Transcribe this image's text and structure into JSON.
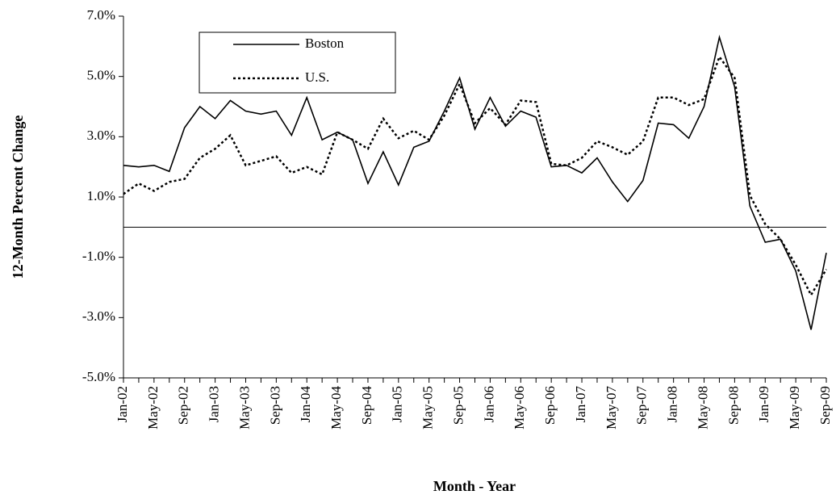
{
  "chart_data": {
    "type": "line",
    "x_label": "Month - Year",
    "y_label": "12-Month Percent Change",
    "categories": [
      "Jan-02",
      null,
      "May-02",
      null,
      "Sep-02",
      null,
      "Jan-03",
      null,
      "May-03",
      null,
      "Sep-03",
      null,
      "Jan-04",
      null,
      "May-04",
      null,
      "Sep-04",
      null,
      "Jan-05",
      null,
      "May-05",
      null,
      "Sep-05",
      null,
      "Jan-06",
      null,
      "May-06",
      null,
      "Sep-06",
      null,
      "Jan-07",
      null,
      "May-07",
      null,
      "Sep-07",
      null,
      "Jan-08",
      null,
      "May-08",
      null,
      "Sep-08",
      null,
      "Jan-09",
      null,
      "May-09",
      null,
      "Sep-09"
    ],
    "series": [
      {
        "name": "Boston",
        "color": "#000000",
        "line_style": "solid",
        "values": [
          2.05,
          2.0,
          2.05,
          1.85,
          3.3,
          4.0,
          3.6,
          4.2,
          3.85,
          3.75,
          3.85,
          3.05,
          4.3,
          2.9,
          3.15,
          2.9,
          1.45,
          2.5,
          1.4,
          2.65,
          2.85,
          3.85,
          4.95,
          3.25,
          4.3,
          3.35,
          3.85,
          3.65,
          2.0,
          2.05,
          1.8,
          2.3,
          1.5,
          0.85,
          1.55,
          3.45,
          3.4,
          2.95,
          4.0,
          6.3,
          4.65,
          0.7,
          -0.5,
          -0.4,
          -1.45,
          -3.4,
          -0.85
        ]
      },
      {
        "name": "U.S.",
        "color": "#000000",
        "line_style": "dotted",
        "values": [
          1.1,
          1.45,
          1.2,
          1.5,
          1.6,
          2.3,
          2.6,
          3.05,
          2.05,
          2.2,
          2.35,
          1.8,
          2.0,
          1.75,
          3.15,
          2.9,
          2.6,
          3.6,
          2.95,
          3.2,
          2.9,
          3.7,
          4.75,
          3.45,
          3.95,
          3.4,
          4.2,
          4.15,
          2.1,
          2.05,
          2.3,
          2.85,
          2.65,
          2.4,
          2.85,
          4.3,
          4.3,
          4.05,
          4.25,
          5.65,
          4.95,
          1.05,
          0.1,
          -0.4,
          -1.25,
          -2.25,
          -1.4
        ]
      }
    ],
    "ylim": [
      -5,
      7
    ],
    "yticks": [
      {
        "value": -5,
        "label": "-5.0%"
      },
      {
        "value": -3,
        "label": "-3.0%"
      },
      {
        "value": -1,
        "label": "-1.0%"
      },
      {
        "value": 1,
        "label": "1.0%"
      },
      {
        "value": 3,
        "label": "3.0%"
      },
      {
        "value": 5,
        "label": "5.0%"
      },
      {
        "value": 7,
        "label": "7.0%"
      }
    ],
    "legend": "upper left"
  }
}
